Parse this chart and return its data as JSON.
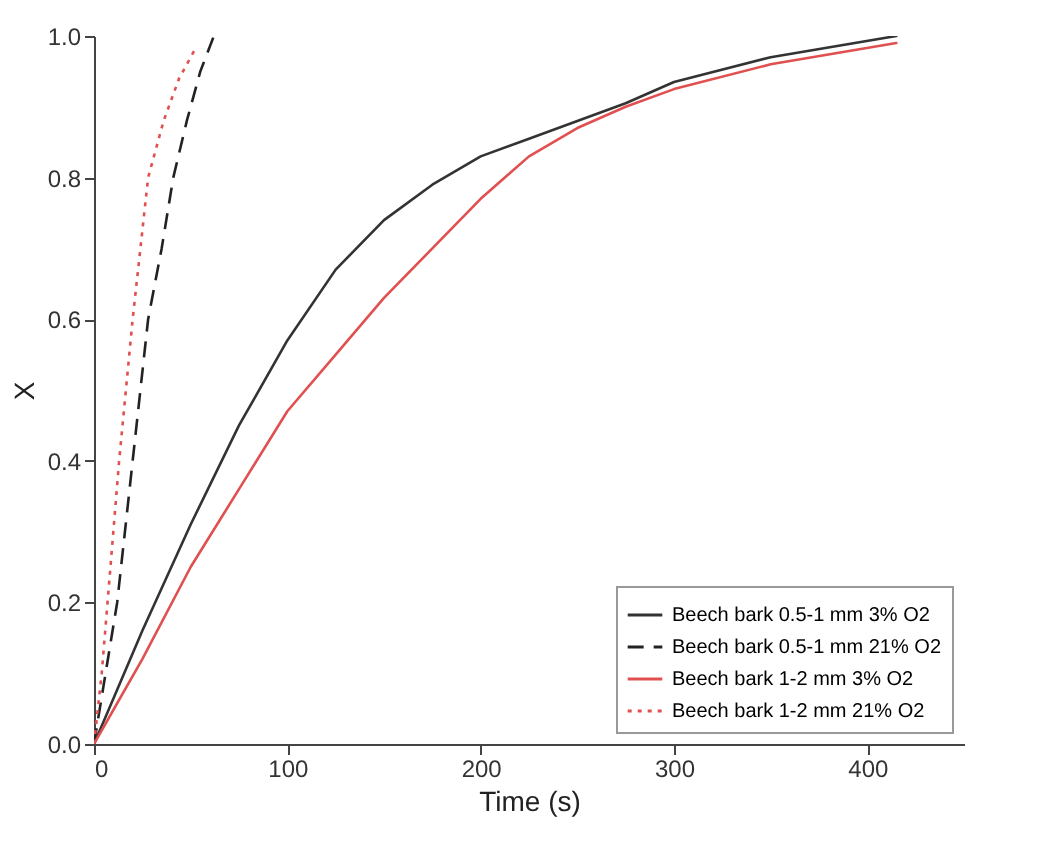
{
  "chart_data": {
    "type": "line",
    "xlabel": "Time (s)",
    "ylabel": "X",
    "xlim": [
      0,
      450
    ],
    "ylim": [
      0,
      1.0
    ],
    "xticks": [
      0,
      100,
      200,
      300,
      400
    ],
    "yticks": [
      {
        "value": 0,
        "label": "0.0"
      },
      {
        "value": 0.2,
        "label": "0.2"
      },
      {
        "value": 0.4,
        "label": "0.4"
      },
      {
        "value": 0.6,
        "label": "0.6"
      },
      {
        "value": 0.8,
        "label": "0.8"
      },
      {
        "value": 1,
        "label": "1.0"
      }
    ],
    "grid": false,
    "legend": "bottom right",
    "series": [
      {
        "name": "Beech bark 0.5-1 mm 3% O2",
        "color": "#333333",
        "line_style": "solid",
        "x": [
          0,
          25,
          50,
          75,
          100,
          125,
          150,
          175,
          200,
          225,
          250,
          275,
          300,
          350,
          415
        ],
        "values": [
          0,
          0.16,
          0.31,
          0.45,
          0.57,
          0.67,
          0.74,
          0.79,
          0.83,
          0.855,
          0.88,
          0.905,
          0.935,
          0.97,
          1.0
        ]
      },
      {
        "name": "Beech bark 0.5-1 mm 21% O2",
        "color": "#222222",
        "line_style": "dashed",
        "x": [
          0,
          6,
          12,
          20,
          28,
          35,
          41,
          48,
          55,
          62
        ],
        "values": [
          0,
          0.1,
          0.2,
          0.4,
          0.6,
          0.7,
          0.8,
          0.88,
          0.95,
          1.0
        ]
      },
      {
        "name": "Beech bark 1-2 mm 3% O2",
        "color": "#e05050",
        "line_style": "solid",
        "x": [
          0,
          25,
          50,
          75,
          100,
          125,
          150,
          175,
          200,
          225,
          250,
          275,
          300,
          350,
          415
        ],
        "values": [
          0,
          0.12,
          0.25,
          0.36,
          0.47,
          0.55,
          0.63,
          0.7,
          0.77,
          0.83,
          0.87,
          0.9,
          0.925,
          0.96,
          0.99
        ]
      },
      {
        "name": "Beech bark 1-2 mm 21% O2",
        "color": "#e05050",
        "line_style": "dotted",
        "x": [
          0,
          4,
          7,
          13,
          20,
          28,
          36,
          44,
          52
        ],
        "values": [
          0,
          0.1,
          0.2,
          0.4,
          0.6,
          0.8,
          0.88,
          0.94,
          0.98
        ]
      }
    ]
  }
}
